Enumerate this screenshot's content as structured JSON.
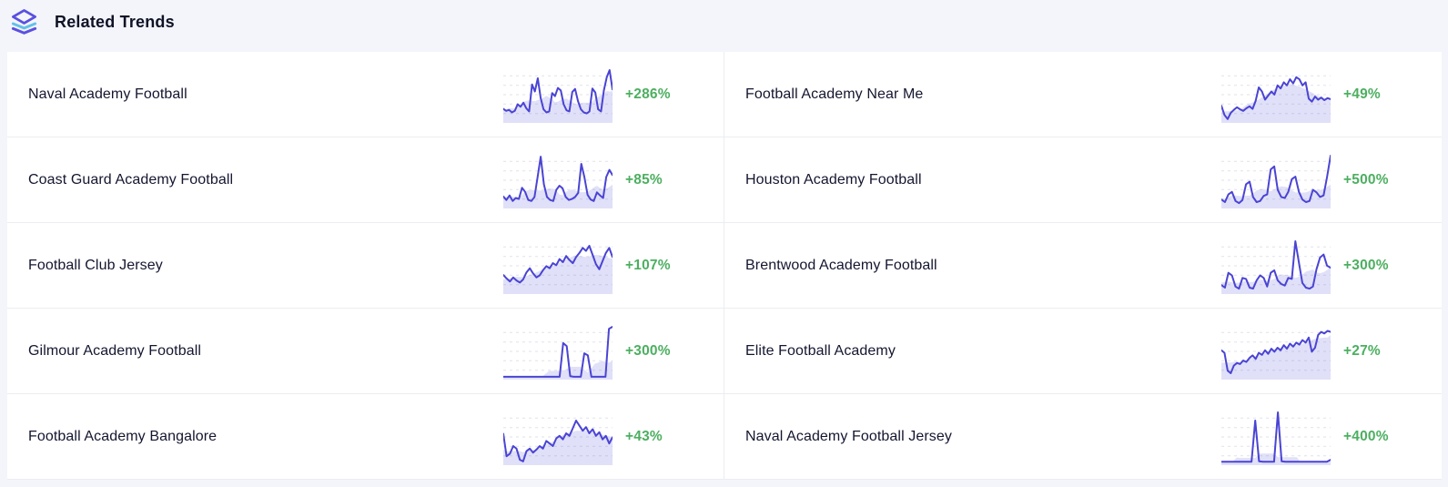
{
  "header": {
    "title": "Related Trends"
  },
  "colors": {
    "line": "#4a44d4",
    "area_fill": "rgba(99,102,221,0.20)",
    "grid": "#e1e2ea",
    "positive": "#4caf60",
    "icon_indigo": "#5a50e0",
    "icon_blue": "#63c1ea"
  },
  "trends": {
    "items": [
      {
        "name": "Naval Academy Football",
        "change": "+286%",
        "sparkline": [
          24,
          20,
          22,
          17,
          20,
          33,
          28,
          36,
          25,
          19,
          72,
          58,
          84,
          45,
          23,
          17,
          19,
          55,
          49,
          65,
          60,
          33,
          21,
          19,
          57,
          63,
          39,
          23,
          17,
          15,
          19,
          64,
          56,
          23,
          19,
          60,
          86,
          100,
          62
        ]
      },
      {
        "name": "Football Academy Near Me",
        "change": "+49%",
        "sparkline": [
          30,
          12,
          4,
          16,
          22,
          27,
          23,
          20,
          25,
          29,
          24,
          40,
          66,
          58,
          42,
          50,
          58,
          52,
          70,
          64,
          76,
          70,
          82,
          74,
          86,
          82,
          70,
          76,
          44,
          38,
          48,
          42,
          46,
          41,
          45,
          43
        ]
      },
      {
        "name": "Coast Guard Academy Football",
        "change": "+85%",
        "sparkline": [
          20,
          13,
          22,
          11,
          17,
          15,
          37,
          29,
          13,
          11,
          19,
          58,
          98,
          44,
          19,
          13,
          11,
          33,
          41,
          36,
          19,
          13,
          15,
          19,
          27,
          84,
          58,
          23,
          14,
          11,
          28,
          22,
          17,
          58,
          72,
          62
        ]
      },
      {
        "name": "Houston Academy Football",
        "change": "+500%",
        "sparkline": [
          14,
          9,
          24,
          29,
          11,
          7,
          13,
          44,
          49,
          19,
          9,
          11,
          21,
          24,
          73,
          79,
          33,
          19,
          17,
          29,
          54,
          59,
          29,
          14,
          9,
          11,
          33,
          28,
          19,
          22,
          58,
          100
        ]
      },
      {
        "name": "Football Club Jersey",
        "change": "+107%",
        "sparkline": [
          34,
          27,
          21,
          29,
          23,
          19,
          25,
          39,
          47,
          37,
          29,
          33,
          43,
          51,
          47,
          57,
          53,
          65,
          59,
          71,
          63,
          57,
          69,
          77,
          87,
          81,
          91,
          73,
          55,
          45,
          61,
          77,
          87,
          69
        ]
      },
      {
        "name": "Brentwood Academy Football",
        "change": "+300%",
        "sparkline": [
          14,
          9,
          38,
          33,
          11,
          7,
          28,
          26,
          9,
          7,
          23,
          33,
          28,
          11,
          38,
          43,
          23,
          16,
          13,
          28,
          26,
          100,
          58,
          18,
          9,
          7,
          11,
          45,
          68,
          74,
          52,
          48
        ]
      },
      {
        "name": "Gilmour Academy Football",
        "change": "+300%",
        "sparkline": [
          2,
          2,
          2,
          2,
          2,
          2,
          2,
          2,
          2,
          2,
          2,
          2,
          2,
          2,
          2,
          2,
          2,
          68,
          62,
          3,
          2,
          2,
          2,
          48,
          44,
          2,
          2,
          2,
          2,
          2,
          96,
          100
        ]
      },
      {
        "name": "Elite Football Academy",
        "change": "+27%",
        "sparkline": [
          54,
          49,
          14,
          9,
          24,
          29,
          27,
          34,
          31,
          39,
          44,
          37,
          49,
          45,
          54,
          47,
          57,
          51,
          59,
          54,
          64,
          57,
          67,
          61,
          69,
          65,
          74,
          69,
          79,
          51,
          59,
          84,
          90,
          87,
          92,
          90
        ]
      },
      {
        "name": "Football Academy Bangalore",
        "change": "+43%",
        "sparkline": [
          58,
          14,
          19,
          34,
          29,
          7,
          4,
          24,
          29,
          21,
          27,
          34,
          29,
          44,
          39,
          34,
          49,
          54,
          47,
          59,
          54,
          69,
          84,
          74,
          64,
          71,
          59,
          67,
          54,
          61,
          47,
          54,
          39,
          51
        ]
      },
      {
        "name": "Naval Academy Football Jersey",
        "change": "+400%",
        "sparkline": [
          3,
          3,
          3,
          3,
          3,
          3,
          3,
          3,
          3,
          84,
          4,
          3,
          3,
          3,
          3,
          100,
          4,
          3,
          3,
          3,
          3,
          3,
          3,
          3,
          3,
          3,
          3,
          3,
          3,
          7
        ]
      }
    ]
  }
}
